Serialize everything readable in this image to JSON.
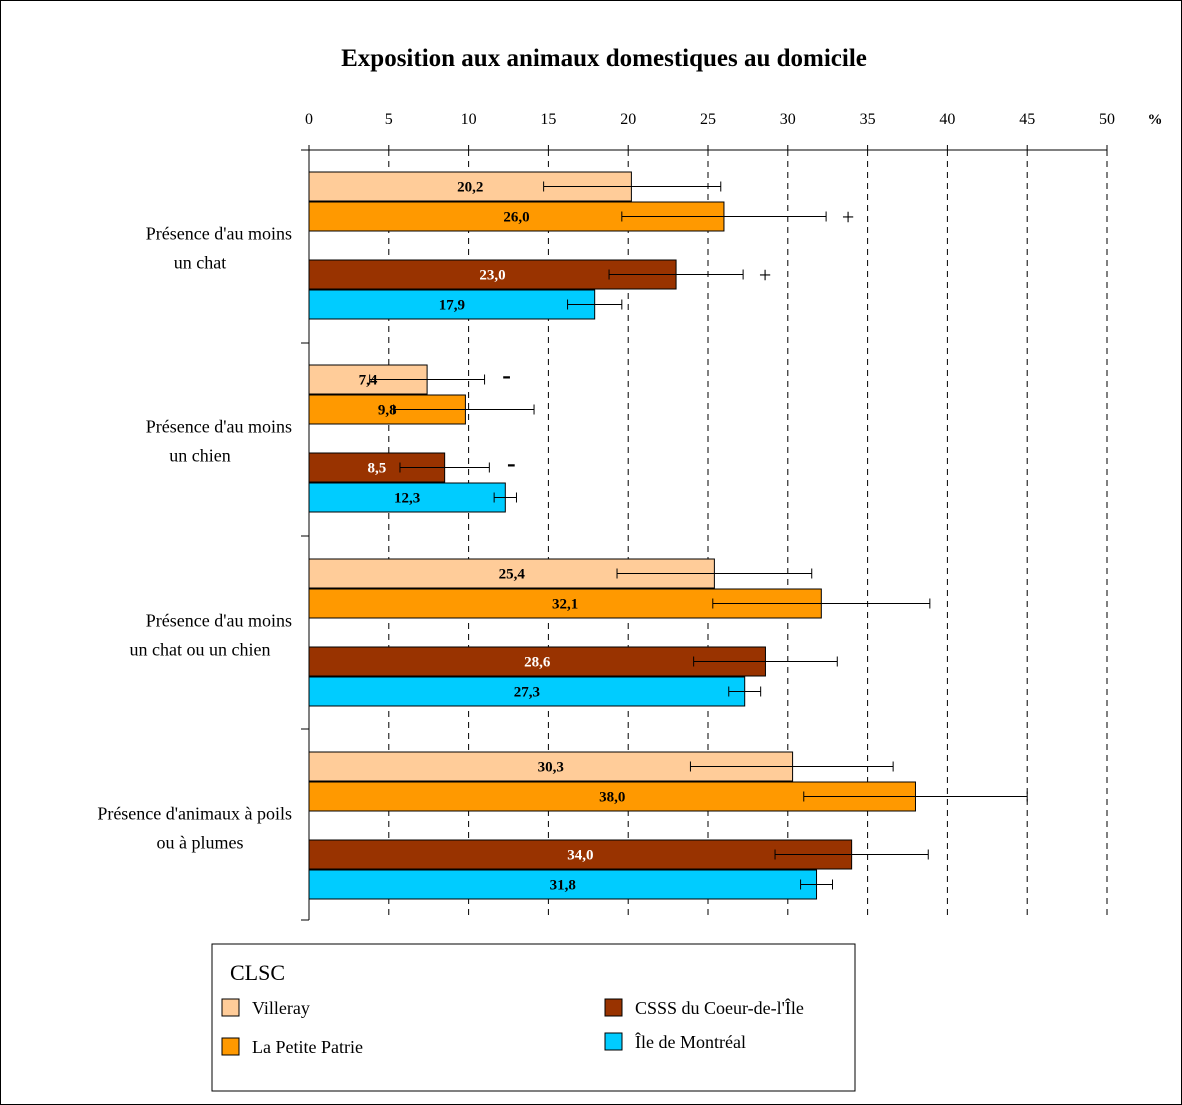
{
  "chart_data": {
    "type": "bar",
    "orientation": "horizontal",
    "title": "Exposition aux animaux domestiques au domicile",
    "unit_label": "%",
    "xlim": [
      0,
      50
    ],
    "ticks": [
      "0",
      "5",
      "10",
      "15",
      "20",
      "25",
      "30",
      "35",
      "40",
      "45",
      "50"
    ],
    "tick_values": [
      0,
      5,
      10,
      15,
      20,
      25,
      30,
      35,
      40,
      45,
      50
    ],
    "grid": "vertical-dashed",
    "categories": [
      {
        "line1": "Présence d'au moins",
        "line2": "un chat"
      },
      {
        "line1": "Présence d'au moins",
        "line2": "un chien"
      },
      {
        "line1": "Présence d'au moins",
        "line2": "un chat ou un chien"
      },
      {
        "line1": "Présence d'animaux à poils",
        "line2": "ou à plumes"
      }
    ],
    "series": [
      {
        "name": "Villeray",
        "color": "#FFCC99",
        "label_color": "#000000",
        "values": [
          20.2,
          7.4,
          25.4,
          30.3
        ],
        "labels": [
          "20,2",
          "7,4",
          "25,4",
          "30,3"
        ],
        "error_low": [
          14.7,
          3.8,
          19.3,
          23.9
        ],
        "error_high": [
          25.8,
          11.0,
          31.5,
          36.6
        ],
        "markers": [
          "",
          "-",
          "",
          ""
        ]
      },
      {
        "name": "La Petite Patrie",
        "color": "#FF9900",
        "label_color": "#000000",
        "values": [
          26.0,
          9.8,
          32.1,
          38.0
        ],
        "labels": [
          "26,0",
          "9,8",
          "32,1",
          "38,0"
        ],
        "error_low": [
          19.6,
          5.3,
          25.3,
          31.0
        ],
        "error_high": [
          32.4,
          14.1,
          38.9,
          45.0
        ],
        "markers": [
          "+",
          "",
          "",
          ""
        ]
      },
      {
        "name": "CSSS du Coeur-de-l'Île",
        "color": "#993300",
        "label_color": "#ffffff",
        "values": [
          23.0,
          8.5,
          28.6,
          34.0
        ],
        "labels": [
          "23,0",
          "8,5",
          "28,6",
          "34,0"
        ],
        "error_low": [
          18.8,
          5.7,
          24.1,
          29.2
        ],
        "error_high": [
          27.2,
          11.3,
          33.1,
          38.8
        ],
        "markers": [
          "+",
          "-",
          "",
          ""
        ]
      },
      {
        "name": "Île de Montréal",
        "color": "#00CCFF",
        "label_color": "#000000",
        "values": [
          17.9,
          12.3,
          27.3,
          31.8
        ],
        "labels": [
          "17,9",
          "12,3",
          "27,3",
          "31,8"
        ],
        "error_low": [
          16.2,
          11.6,
          26.3,
          30.8
        ],
        "error_high": [
          19.6,
          13.0,
          28.3,
          32.8
        ],
        "markers": [
          "",
          "",
          "",
          ""
        ]
      }
    ],
    "legend": {
      "title": "CLSC",
      "placement": "bottom",
      "columns": [
        [
          "Villeray",
          "La Petite Patrie"
        ],
        [
          "CSSS du Coeur-de-l'Île",
          "Île de Montréal"
        ]
      ]
    }
  }
}
